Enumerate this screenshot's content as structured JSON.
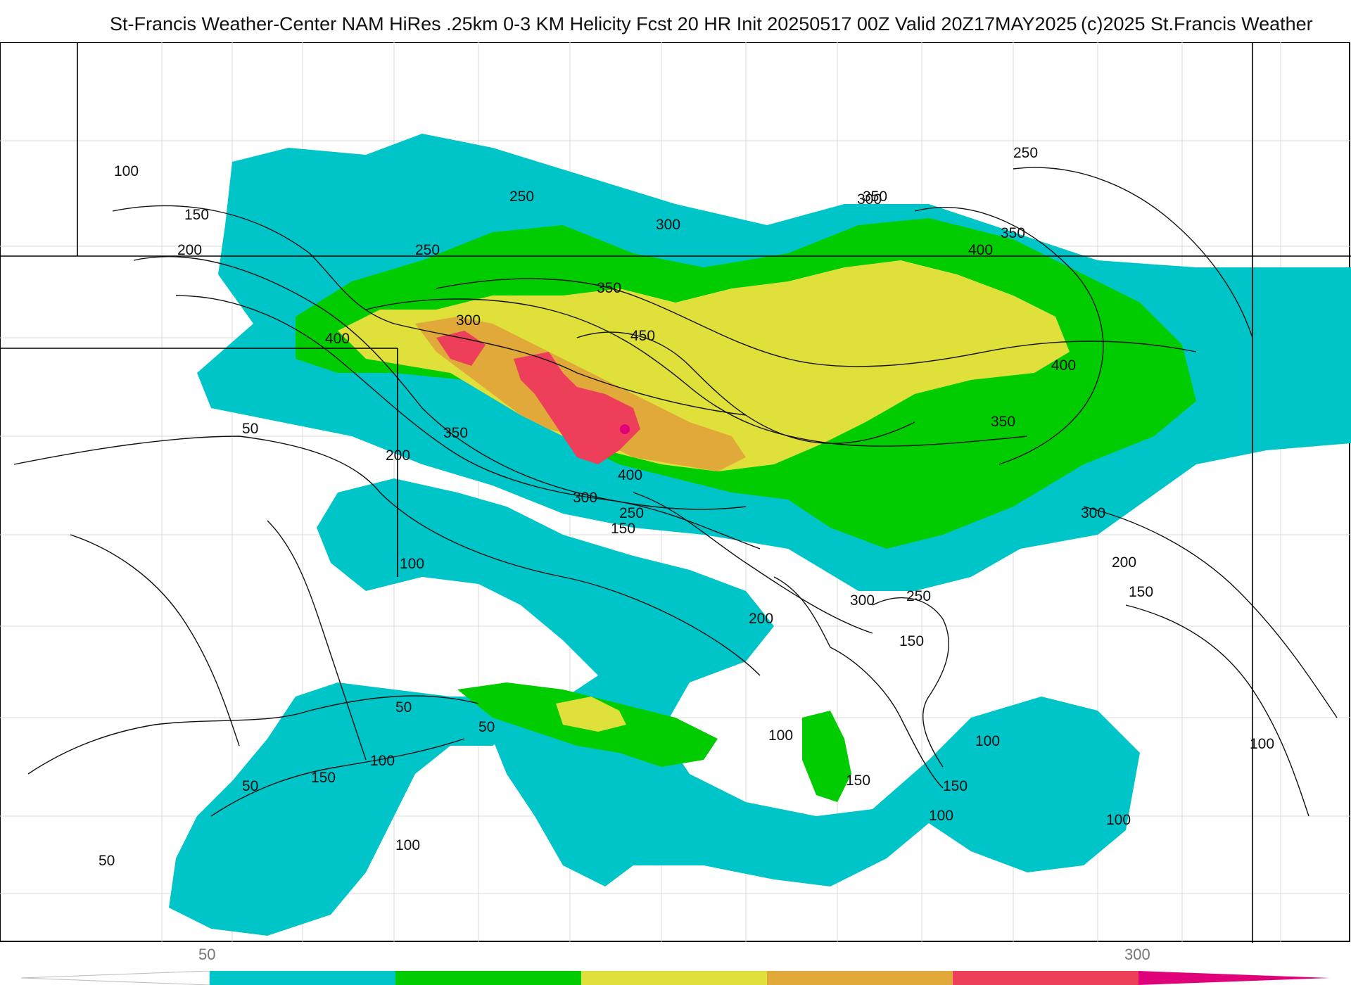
{
  "header": {
    "title": "St-Francis Weather-Center NAM HiRes .25km 0-3 KM Helicity Fcst 20 HR Init 20250517 00Z  Valid 20Z17MAY2025",
    "copyright": "(c)2025 St.Francis Weather"
  },
  "colorbar": {
    "label_low": "50",
    "label_high": "300",
    "colors": [
      "#00c5c8",
      "#00cc00",
      "#e0e03a",
      "#e0a93a",
      "#ee3f5a",
      "#e0007a"
    ]
  },
  "fill_colors": {
    "cyan": "#00c5c8",
    "green": "#00cc00",
    "yellow": "#e0e03a",
    "orange": "#e0a93a",
    "red": "#ee3f5a",
    "magenta": "#e0007a"
  },
  "contour_labels": [
    "100",
    "150",
    "200",
    "250",
    "300",
    "350",
    "400",
    "450",
    "50",
    "200",
    "350",
    "400",
    "300",
    "250",
    "150",
    "100",
    "200",
    "300",
    "250",
    "150",
    "50",
    "50",
    "100",
    "150",
    "50",
    "50",
    "100",
    "100",
    "150",
    "100",
    "150",
    "100",
    "100",
    "100",
    "300",
    "200",
    "150",
    "350",
    "400",
    "350",
    "300",
    "350",
    "250",
    "300",
    "250",
    "400"
  ]
}
